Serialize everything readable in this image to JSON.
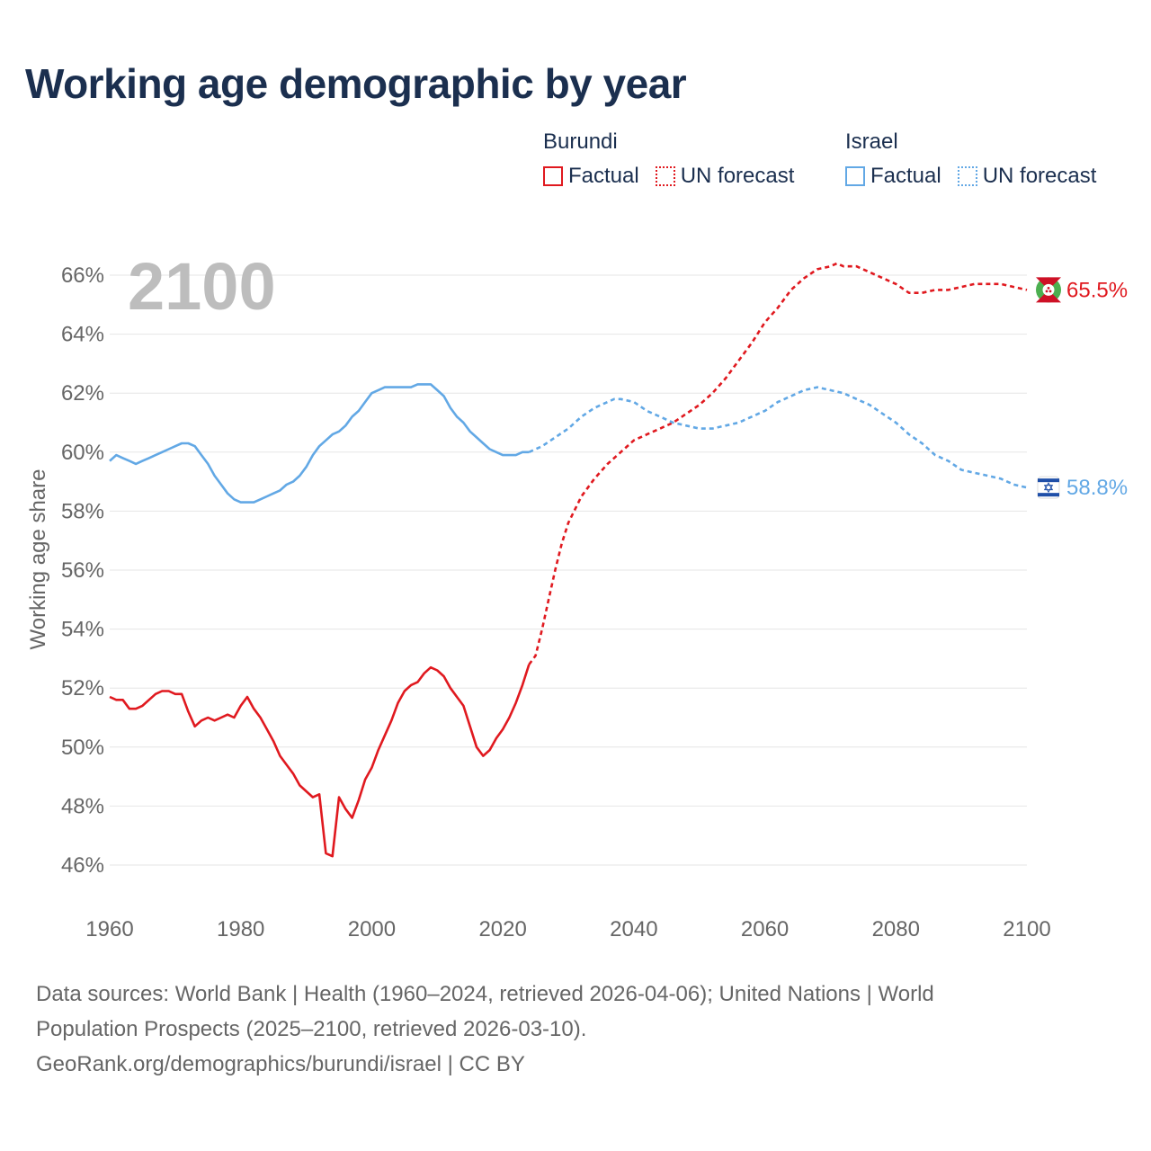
{
  "title": "Working age demographic by year",
  "legend": {
    "groups": [
      {
        "name": "Burundi",
        "factual_label": "Factual",
        "forecast_label": "UN forecast",
        "color": "#e0191f"
      },
      {
        "name": "Israel",
        "factual_label": "Factual",
        "forecast_label": "UN forecast",
        "color": "#62a8e5"
      }
    ]
  },
  "footer": {
    "sources_line1": "Data sources: World Bank | Health (1960–2024, retrieved 2026-04-06); United Nations | World",
    "sources_line2": "Population Prospects (2025–2100, retrieved 2026-03-10).",
    "credit": "GeoRank.org/demographics/burundi/israel | CC BY"
  },
  "chart_data": {
    "type": "line",
    "title": "Working age demographic by year",
    "xlabel": "",
    "ylabel": "Working age share",
    "xlim": [
      1960,
      2100
    ],
    "ylim": [
      45,
      67
    ],
    "x_ticks": [
      1960,
      1980,
      2000,
      2020,
      2040,
      2060,
      2080,
      2100
    ],
    "x_tick_labels": [
      "1960",
      "1980",
      "2000",
      "2020",
      "2040",
      "2060",
      "2080",
      "2100"
    ],
    "y_ticks": [
      46,
      48,
      50,
      52,
      54,
      56,
      58,
      60,
      62,
      64,
      66
    ],
    "y_tick_labels": [
      "46%",
      "48%",
      "50%",
      "52%",
      "54%",
      "56%",
      "58%",
      "60%",
      "62%",
      "64%",
      "66%"
    ],
    "grid": true,
    "year_label": "2100",
    "forecast_start": 2024,
    "series": [
      {
        "name": "Burundi",
        "color": "#e0191f",
        "end_label": "65.5%",
        "factual": [
          [
            1960,
            51.7
          ],
          [
            1961,
            51.6
          ],
          [
            1962,
            51.6
          ],
          [
            1963,
            51.3
          ],
          [
            1964,
            51.3
          ],
          [
            1965,
            51.4
          ],
          [
            1966,
            51.6
          ],
          [
            1967,
            51.8
          ],
          [
            1968,
            51.9
          ],
          [
            1969,
            51.9
          ],
          [
            1970,
            51.8
          ],
          [
            1971,
            51.8
          ],
          [
            1972,
            51.2
          ],
          [
            1973,
            50.7
          ],
          [
            1974,
            50.9
          ],
          [
            1975,
            51.0
          ],
          [
            1976,
            50.9
          ],
          [
            1977,
            51.0
          ],
          [
            1978,
            51.1
          ],
          [
            1979,
            51.0
          ],
          [
            1980,
            51.4
          ],
          [
            1981,
            51.7
          ],
          [
            1982,
            51.3
          ],
          [
            1983,
            51.0
          ],
          [
            1984,
            50.6
          ],
          [
            1985,
            50.2
          ],
          [
            1986,
            49.7
          ],
          [
            1987,
            49.4
          ],
          [
            1988,
            49.1
          ],
          [
            1989,
            48.7
          ],
          [
            1990,
            48.5
          ],
          [
            1991,
            48.3
          ],
          [
            1992,
            48.4
          ],
          [
            1993,
            46.4
          ],
          [
            1994,
            46.3
          ],
          [
            1995,
            48.3
          ],
          [
            1996,
            47.9
          ],
          [
            1997,
            47.6
          ],
          [
            1998,
            48.2
          ],
          [
            1999,
            48.9
          ],
          [
            2000,
            49.3
          ],
          [
            2001,
            49.9
          ],
          [
            2002,
            50.4
          ],
          [
            2003,
            50.9
          ],
          [
            2004,
            51.5
          ],
          [
            2005,
            51.9
          ],
          [
            2006,
            52.1
          ],
          [
            2007,
            52.2
          ],
          [
            2008,
            52.5
          ],
          [
            2009,
            52.7
          ],
          [
            2010,
            52.6
          ],
          [
            2011,
            52.4
          ],
          [
            2012,
            52.0
          ],
          [
            2013,
            51.7
          ],
          [
            2014,
            51.4
          ],
          [
            2015,
            50.7
          ],
          [
            2016,
            50.0
          ],
          [
            2017,
            49.7
          ],
          [
            2018,
            49.9
          ],
          [
            2019,
            50.3
          ],
          [
            2020,
            50.6
          ],
          [
            2021,
            51.0
          ],
          [
            2022,
            51.5
          ],
          [
            2023,
            52.1
          ],
          [
            2024,
            52.8
          ]
        ],
        "forecast": [
          [
            2024,
            52.8
          ],
          [
            2025,
            53.1
          ],
          [
            2026,
            54.0
          ],
          [
            2027,
            55.0
          ],
          [
            2028,
            56.0
          ],
          [
            2029,
            56.9
          ],
          [
            2030,
            57.6
          ],
          [
            2032,
            58.5
          ],
          [
            2034,
            59.1
          ],
          [
            2036,
            59.6
          ],
          [
            2038,
            60.0
          ],
          [
            2040,
            60.4
          ],
          [
            2042,
            60.6
          ],
          [
            2044,
            60.8
          ],
          [
            2046,
            61.0
          ],
          [
            2048,
            61.3
          ],
          [
            2050,
            61.6
          ],
          [
            2052,
            62.0
          ],
          [
            2054,
            62.5
          ],
          [
            2056,
            63.1
          ],
          [
            2058,
            63.7
          ],
          [
            2060,
            64.4
          ],
          [
            2062,
            64.9
          ],
          [
            2064,
            65.5
          ],
          [
            2066,
            65.9
          ],
          [
            2068,
            66.2
          ],
          [
            2070,
            66.3
          ],
          [
            2071,
            66.4
          ],
          [
            2072,
            66.3
          ],
          [
            2074,
            66.3
          ],
          [
            2076,
            66.1
          ],
          [
            2078,
            65.9
          ],
          [
            2080,
            65.7
          ],
          [
            2082,
            65.4
          ],
          [
            2084,
            65.4
          ],
          [
            2086,
            65.5
          ],
          [
            2088,
            65.5
          ],
          [
            2090,
            65.6
          ],
          [
            2092,
            65.7
          ],
          [
            2094,
            65.7
          ],
          [
            2096,
            65.7
          ],
          [
            2098,
            65.6
          ],
          [
            2100,
            65.5
          ]
        ]
      },
      {
        "name": "Israel",
        "color": "#62a8e5",
        "end_label": "58.8%",
        "factual": [
          [
            1960,
            59.7
          ],
          [
            1961,
            59.9
          ],
          [
            1962,
            59.8
          ],
          [
            1963,
            59.7
          ],
          [
            1964,
            59.6
          ],
          [
            1965,
            59.7
          ],
          [
            1966,
            59.8
          ],
          [
            1967,
            59.9
          ],
          [
            1968,
            60.0
          ],
          [
            1969,
            60.1
          ],
          [
            1970,
            60.2
          ],
          [
            1971,
            60.3
          ],
          [
            1972,
            60.3
          ],
          [
            1973,
            60.2
          ],
          [
            1974,
            59.9
          ],
          [
            1975,
            59.6
          ],
          [
            1976,
            59.2
          ],
          [
            1977,
            58.9
          ],
          [
            1978,
            58.6
          ],
          [
            1979,
            58.4
          ],
          [
            1980,
            58.3
          ],
          [
            1981,
            58.3
          ],
          [
            1982,
            58.3
          ],
          [
            1983,
            58.4
          ],
          [
            1984,
            58.5
          ],
          [
            1985,
            58.6
          ],
          [
            1986,
            58.7
          ],
          [
            1987,
            58.9
          ],
          [
            1988,
            59.0
          ],
          [
            1989,
            59.2
          ],
          [
            1990,
            59.5
          ],
          [
            1991,
            59.9
          ],
          [
            1992,
            60.2
          ],
          [
            1993,
            60.4
          ],
          [
            1994,
            60.6
          ],
          [
            1995,
            60.7
          ],
          [
            1996,
            60.9
          ],
          [
            1997,
            61.2
          ],
          [
            1998,
            61.4
          ],
          [
            1999,
            61.7
          ],
          [
            2000,
            62.0
          ],
          [
            2001,
            62.1
          ],
          [
            2002,
            62.2
          ],
          [
            2003,
            62.2
          ],
          [
            2004,
            62.2
          ],
          [
            2005,
            62.2
          ],
          [
            2006,
            62.2
          ],
          [
            2007,
            62.3
          ],
          [
            2008,
            62.3
          ],
          [
            2009,
            62.3
          ],
          [
            2010,
            62.1
          ],
          [
            2011,
            61.9
          ],
          [
            2012,
            61.5
          ],
          [
            2013,
            61.2
          ],
          [
            2014,
            61.0
          ],
          [
            2015,
            60.7
          ],
          [
            2016,
            60.5
          ],
          [
            2017,
            60.3
          ],
          [
            2018,
            60.1
          ],
          [
            2019,
            60.0
          ],
          [
            2020,
            59.9
          ],
          [
            2021,
            59.9
          ],
          [
            2022,
            59.9
          ],
          [
            2023,
            60.0
          ],
          [
            2024,
            60.0
          ]
        ],
        "forecast": [
          [
            2024,
            60.0
          ],
          [
            2025,
            60.1
          ],
          [
            2026,
            60.2
          ],
          [
            2028,
            60.5
          ],
          [
            2030,
            60.8
          ],
          [
            2032,
            61.2
          ],
          [
            2034,
            61.5
          ],
          [
            2036,
            61.7
          ],
          [
            2037,
            61.8
          ],
          [
            2038,
            61.8
          ],
          [
            2040,
            61.7
          ],
          [
            2042,
            61.4
          ],
          [
            2044,
            61.2
          ],
          [
            2046,
            61.0
          ],
          [
            2048,
            60.9
          ],
          [
            2050,
            60.8
          ],
          [
            2052,
            60.8
          ],
          [
            2054,
            60.9
          ],
          [
            2056,
            61.0
          ],
          [
            2058,
            61.2
          ],
          [
            2060,
            61.4
          ],
          [
            2062,
            61.7
          ],
          [
            2064,
            61.9
          ],
          [
            2066,
            62.1
          ],
          [
            2068,
            62.2
          ],
          [
            2070,
            62.1
          ],
          [
            2072,
            62.0
          ],
          [
            2074,
            61.8
          ],
          [
            2076,
            61.6
          ],
          [
            2078,
            61.3
          ],
          [
            2080,
            61.0
          ],
          [
            2082,
            60.6
          ],
          [
            2084,
            60.3
          ],
          [
            2086,
            59.9
          ],
          [
            2088,
            59.7
          ],
          [
            2090,
            59.4
          ],
          [
            2092,
            59.3
          ],
          [
            2094,
            59.2
          ],
          [
            2096,
            59.1
          ],
          [
            2098,
            58.9
          ],
          [
            2100,
            58.8
          ]
        ]
      }
    ]
  }
}
